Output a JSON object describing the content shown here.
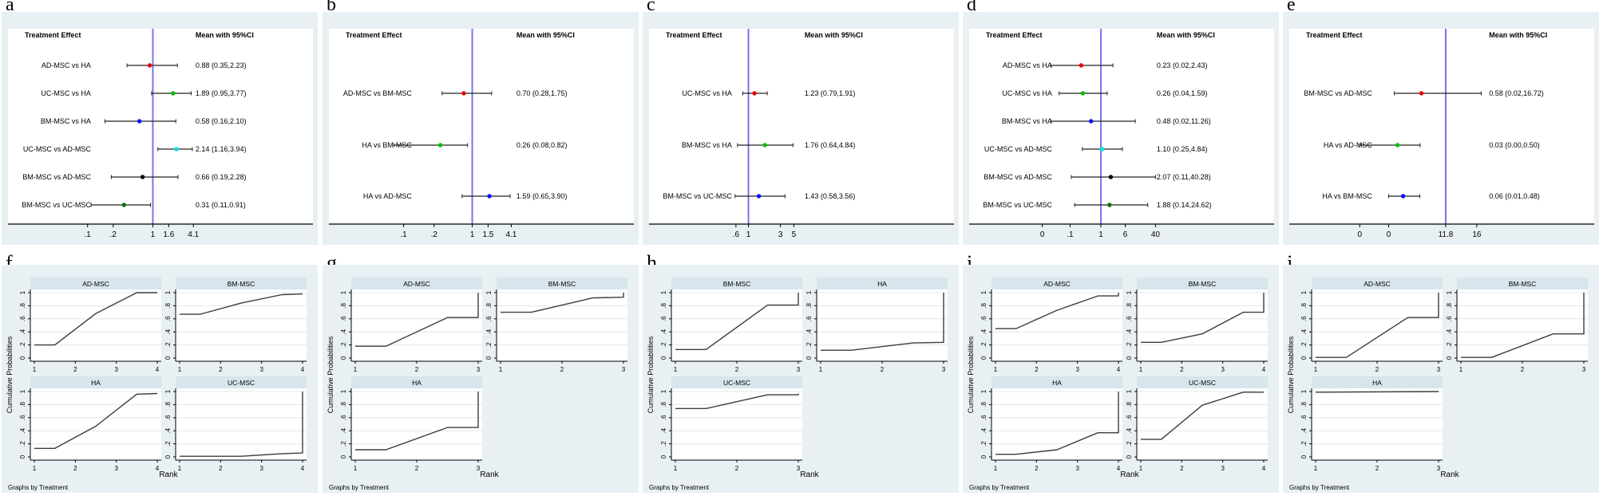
{
  "figure": {
    "panel_letters": [
      "a",
      "b",
      "c",
      "d",
      "e",
      "f",
      "g",
      "h",
      "i",
      "j"
    ]
  },
  "colors": {
    "panel_bg": "#e9f0f3",
    "header_band": "#d8e5ec",
    "gridline": "#dce8ef",
    "ref_line": "#7676ee",
    "curve": "#3c3c3c",
    "axis": "#000000",
    "dots": {
      "red": "#f00000",
      "green": "#00c000",
      "blue": "#0f0fff",
      "cyan": "#00dfe8",
      "black": "#000000",
      "dkgreen": "#0c6e0c"
    }
  },
  "chart_data": [
    {
      "id": "a",
      "type": "forest",
      "letter": "a",
      "headers": {
        "left": "Treatment Effect",
        "right": "Mean with 95%CI"
      },
      "rows": [
        {
          "label": "AD-MSC vs HA",
          "text": "0.88 (0.35,2.23)",
          "mean": 0.88,
          "lo": 0.35,
          "hi": 2.23,
          "color": "red"
        },
        {
          "label": "UC-MSC vs HA",
          "text": "1.89 (0.95,3.77)",
          "mean": 1.89,
          "lo": 0.95,
          "hi": 3.77,
          "color": "green"
        },
        {
          "label": "BM-MSC vs HA",
          "text": "0.58 (0.16,2.10)",
          "mean": 0.58,
          "lo": 0.16,
          "hi": 2.1,
          "color": "blue"
        },
        {
          "label": "UC-MSC vs AD-MSC",
          "text": "2.14 (1.16,3.94)",
          "mean": 2.14,
          "lo": 1.16,
          "hi": 3.94,
          "color": "cyan"
        },
        {
          "label": "BM-MSC vs AD-MSC",
          "text": "0.66 (0.19,2.28)",
          "mean": 0.66,
          "lo": 0.19,
          "hi": 2.28,
          "color": "black"
        },
        {
          "label": "BM-MSC vs UC-MSC",
          "text": "0.31 (0.11,0.91)",
          "mean": 0.31,
          "lo": 0.11,
          "hi": 0.91,
          "color": "dkgreen"
        }
      ],
      "ticks": [
        {
          "label": ".1",
          "av": 0.1,
          "f": 0.261
        },
        {
          "label": ".2",
          "av": 0.2,
          "f": 0.345
        },
        {
          "label": "1",
          "av": 1,
          "f": 0.475
        },
        {
          "label": "1.6",
          "av": 1.6,
          "f": 0.527
        },
        {
          "label": "4.1",
          "av": 4.1,
          "f": 0.608
        }
      ],
      "ref_f": 0.475,
      "value_col_f": 0.615
    },
    {
      "id": "b",
      "type": "forest",
      "letter": "b",
      "headers": {
        "left": "Treatment Effect",
        "right": "Mean with 95%CI"
      },
      "rows": [
        {
          "label": "AD-MSC vs BM-MSC",
          "text": "0.70 (0.28,1.75)",
          "mean": 0.7,
          "lo": 0.28,
          "hi": 1.75,
          "color": "red"
        },
        {
          "label": "HA vs BM-MSC",
          "text": "0.26 (0.08,0.82)",
          "mean": 0.26,
          "lo": 0.08,
          "hi": 0.82,
          "color": "green"
        },
        {
          "label": "HA vs AD-MSC",
          "text": "1.59 (0.65,3.90)",
          "mean": 1.59,
          "lo": 0.65,
          "hi": 3.9,
          "color": "blue"
        }
      ],
      "ticks": [
        {
          "label": ".1",
          "av": 0.1,
          "f": 0.245
        },
        {
          "label": ".2",
          "av": 0.2,
          "f": 0.345
        },
        {
          "label": "1",
          "av": 1,
          "f": 0.47
        },
        {
          "label": "1.5",
          "av": 1.5,
          "f": 0.522
        },
        {
          "label": "4.1",
          "av": 4.1,
          "f": 0.598
        }
      ],
      "ref_f": 0.47,
      "value_col_f": 0.615
    },
    {
      "id": "c",
      "type": "forest",
      "letter": "c",
      "headers": {
        "left": "Treatment Effect",
        "right": "Mean with 95%CI"
      },
      "rows": [
        {
          "label": "UC-MSC vs HA",
          "text": "1.23 (0.79,1.91)",
          "mean": 1.23,
          "lo": 0.79,
          "hi": 1.91,
          "color": "red"
        },
        {
          "label": "BM-MSC vs HA",
          "text": "1.76 (0.64,4.84)",
          "mean": 1.76,
          "lo": 0.64,
          "hi": 4.84,
          "color": "green"
        },
        {
          "label": "BM-MSC vs UC-MSC",
          "text": "1.43 (0.58,3.56)",
          "mean": 1.43,
          "lo": 0.58,
          "hi": 3.56,
          "color": "blue"
        }
      ],
      "ticks": [
        {
          "label": ".6",
          "av": 0.6,
          "f": 0.285
        },
        {
          "label": "1",
          "av": 1,
          "f": 0.326
        },
        {
          "label": "3",
          "av": 3,
          "f": 0.431
        },
        {
          "label": "5",
          "av": 5,
          "f": 0.475
        }
      ],
      "ref_f": 0.326,
      "value_col_f": 0.51
    },
    {
      "id": "d",
      "type": "forest",
      "letter": "d",
      "headers": {
        "left": "Treatment Effect",
        "right": "Mean with 95%CI"
      },
      "rows": [
        {
          "label": "AD-MSC vs HA",
          "text": "0.23 (0.02,2.43)",
          "mean": 0.23,
          "lo": 0.02,
          "hi": 2.43,
          "color": "red"
        },
        {
          "label": "UC-MSC vs HA",
          "text": "0.26 (0.04,1.59)",
          "mean": 0.26,
          "lo": 0.04,
          "hi": 1.59,
          "color": "green"
        },
        {
          "label": "BM-MSC vs HA",
          "text": "0.48 (0.02,11.26)",
          "mean": 0.48,
          "lo": 0.02,
          "hi": 11.26,
          "color": "blue"
        },
        {
          "label": "UC-MSC vs AD-MSC",
          "text": "1.10 (0.25,4.84)",
          "mean": 1.1,
          "lo": 0.25,
          "hi": 4.84,
          "color": "cyan"
        },
        {
          "label": "BM-MSC vs AD-MSC",
          "text": "2.07 (0.11,40.28)",
          "mean": 2.07,
          "lo": 0.11,
          "hi": 40.28,
          "color": "black"
        },
        {
          "label": "BM-MSC vs UC-MSC",
          "text": "1.88 (0.14,24.62)",
          "mean": 1.88,
          "lo": 0.14,
          "hi": 24.62,
          "color": "dkgreen"
        }
      ],
      "ticks": [
        {
          "label": "0",
          "av": 0.01,
          "f": 0.24
        },
        {
          "label": ".1",
          "av": 0.1,
          "f": 0.331
        },
        {
          "label": "1",
          "av": 1,
          "f": 0.432
        },
        {
          "label": "6",
          "av": 6,
          "f": 0.512
        },
        {
          "label": "40",
          "av": 40,
          "f": 0.611
        }
      ],
      "ref_f": 0.432,
      "value_col_f": 0.615
    },
    {
      "id": "e",
      "type": "forest",
      "letter": "e",
      "headers": {
        "left": "Treatment Effect",
        "right": "Mean with 95%CI"
      },
      "rows": [
        {
          "label": "BM-MSC vs AD-MSC",
          "text": "0.58 (0.02,16.72)",
          "mean": 0.58,
          "lo": 0.02,
          "hi": 16.72,
          "color": "red"
        },
        {
          "label": "HA vs AD-MSC",
          "text": "0.03 (0.00,0.50)",
          "mean": 0.03,
          "lo": 0.001,
          "hi": 0.5,
          "color": "green"
        },
        {
          "label": "HA vs BM-MSC",
          "text": "0.06 (0.01,0.48)",
          "mean": 0.06,
          "lo": 0.01,
          "hi": 0.48,
          "color": "blue"
        }
      ],
      "ticks": [
        {
          "label": "0",
          "av": 0.001,
          "f": 0.231
        },
        {
          "label": "0",
          "av": 0.01,
          "f": 0.326
        },
        {
          "label": "11.8",
          "av": 11.8,
          "f": 0.513
        },
        {
          "label": "16",
          "av": 16,
          "f": 0.615
        }
      ],
      "ref_f": 0.513,
      "value_col_f": 0.655
    },
    {
      "id": "f",
      "type": "rank",
      "letter": "f",
      "ylabel": "Cumulative Probabilities",
      "xlabel": "Rank",
      "note": "Graphs by Treatment",
      "xmax": 4,
      "xticks": [
        "1",
        "2",
        "3",
        "4"
      ],
      "yticks": [
        {
          "label": "0",
          "v": 0
        },
        {
          "label": ".2",
          "v": 0.2
        },
        {
          "label": ".4",
          "v": 0.4
        },
        {
          "label": ".6",
          "v": 0.6
        },
        {
          "label": ".8",
          "v": 0.8
        },
        {
          "label": "1",
          "v": 1
        }
      ],
      "subplots": [
        {
          "title": "AD-MSC",
          "points": [
            [
              1,
              0.2
            ],
            [
              1.5,
              0.2
            ],
            [
              2.5,
              0.68
            ],
            [
              3.5,
              1.0
            ],
            [
              4,
              1.0
            ]
          ]
        },
        {
          "title": "BM-MSC",
          "points": [
            [
              1,
              0.67
            ],
            [
              1.5,
              0.67
            ],
            [
              2.5,
              0.84
            ],
            [
              3.5,
              0.97
            ],
            [
              4,
              0.98
            ]
          ]
        },
        {
          "title": "HA",
          "points": [
            [
              1,
              0.13
            ],
            [
              1.5,
              0.13
            ],
            [
              2.5,
              0.47
            ],
            [
              3.5,
              0.96
            ],
            [
              4,
              0.97
            ]
          ]
        },
        {
          "title": "UC-MSC",
          "points": [
            [
              1,
              0.01
            ],
            [
              2.5,
              0.01
            ],
            [
              3.5,
              0.05
            ],
            [
              4,
              0.06
            ],
            [
              4,
              1.0
            ]
          ]
        }
      ]
    },
    {
      "id": "g",
      "type": "rank",
      "letter": "g",
      "ylabel": "Cumulative Probabilities",
      "xlabel": "Rank",
      "note": "Graphs by Treatment",
      "xmax": 3,
      "xticks": [
        "1",
        "2",
        "3"
      ],
      "yticks": [
        {
          "label": "0",
          "v": 0
        },
        {
          "label": ".2",
          "v": 0.2
        },
        {
          "label": ".4",
          "v": 0.4
        },
        {
          "label": ".6",
          "v": 0.6
        },
        {
          "label": ".8",
          "v": 0.8
        },
        {
          "label": "1",
          "v": 1
        }
      ],
      "subplots": [
        {
          "title": "AD-MSC",
          "points": [
            [
              1,
              0.18
            ],
            [
              1.5,
              0.18
            ],
            [
              2.5,
              0.62
            ],
            [
              3,
              0.62
            ],
            [
              3,
              1.0
            ]
          ]
        },
        {
          "title": "BM-MSC",
          "points": [
            [
              1,
              0.7
            ],
            [
              1.5,
              0.7
            ],
            [
              2.5,
              0.92
            ],
            [
              3,
              0.93
            ],
            [
              3,
              1.0
            ]
          ]
        },
        {
          "title": "HA",
          "points": [
            [
              1,
              0.11
            ],
            [
              1.5,
              0.11
            ],
            [
              2.5,
              0.45
            ],
            [
              3,
              0.45
            ],
            [
              3,
              1.0
            ]
          ]
        }
      ]
    },
    {
      "id": "h",
      "type": "rank",
      "letter": "h",
      "ylabel": "Cumulative Probabilities",
      "xlabel": "Rank",
      "note": "Graphs by Treatment",
      "xmax": 3,
      "xticks": [
        "1",
        "2",
        "3"
      ],
      "yticks": [
        {
          "label": "0",
          "v": 0
        },
        {
          "label": ".2",
          "v": 0.2
        },
        {
          "label": ".4",
          "v": 0.4
        },
        {
          "label": ".6",
          "v": 0.6
        },
        {
          "label": ".8",
          "v": 0.8
        },
        {
          "label": "1",
          "v": 1
        }
      ],
      "subplots": [
        {
          "title": "BM-MSC",
          "points": [
            [
              1,
              0.13
            ],
            [
              1.5,
              0.13
            ],
            [
              2.5,
              0.81
            ],
            [
              3,
              0.81
            ],
            [
              3,
              1.0
            ]
          ]
        },
        {
          "title": "HA",
          "points": [
            [
              1,
              0.12
            ],
            [
              1.5,
              0.12
            ],
            [
              2.5,
              0.23
            ],
            [
              3,
              0.24
            ],
            [
              3,
              1.0
            ]
          ]
        },
        {
          "title": "UC-MSC",
          "points": [
            [
              1,
              0.74
            ],
            [
              1.5,
              0.74
            ],
            [
              2.5,
              0.95
            ],
            [
              3,
              0.95
            ],
            [
              3,
              0.97
            ]
          ]
        }
      ]
    },
    {
      "id": "i",
      "type": "rank",
      "letter": "i",
      "ylabel": "Cumulative Probabilities",
      "xlabel": "Rank",
      "note": "Graphs by Treatment",
      "xmax": 4,
      "xticks": [
        "1",
        "2",
        "3",
        "4"
      ],
      "yticks": [
        {
          "label": "0",
          "v": 0
        },
        {
          "label": ".2",
          "v": 0.2
        },
        {
          "label": ".4",
          "v": 0.4
        },
        {
          "label": ".6",
          "v": 0.6
        },
        {
          "label": ".8",
          "v": 0.8
        },
        {
          "label": "1",
          "v": 1
        }
      ],
      "subplots": [
        {
          "title": "AD-MSC",
          "points": [
            [
              1,
              0.45
            ],
            [
              1.5,
              0.45
            ],
            [
              2.5,
              0.73
            ],
            [
              3.5,
              0.95
            ],
            [
              4,
              0.95
            ],
            [
              4,
              1.0
            ]
          ]
        },
        {
          "title": "BM-MSC",
          "points": [
            [
              1,
              0.24
            ],
            [
              1.5,
              0.24
            ],
            [
              2.5,
              0.37
            ],
            [
              3.5,
              0.7
            ],
            [
              4,
              0.7
            ],
            [
              4,
              1.0
            ]
          ]
        },
        {
          "title": "HA",
          "points": [
            [
              1,
              0.04
            ],
            [
              1.5,
              0.04
            ],
            [
              2.5,
              0.11
            ],
            [
              3.5,
              0.37
            ],
            [
              4,
              0.37
            ],
            [
              4,
              1.0
            ]
          ]
        },
        {
          "title": "UC-MSC",
          "points": [
            [
              1,
              0.27
            ],
            [
              1.5,
              0.27
            ],
            [
              2.5,
              0.79
            ],
            [
              3.5,
              0.99
            ],
            [
              4,
              0.99
            ]
          ]
        }
      ]
    },
    {
      "id": "j",
      "type": "rank",
      "letter": "j",
      "ylabel": "Cumulative Probabilities",
      "xlabel": "Rank",
      "note": "Graphs by Treatment",
      "xmax": 3,
      "xticks": [
        "1",
        "2",
        "3"
      ],
      "yticks": [
        {
          "label": "0",
          "v": 0
        },
        {
          "label": ".2",
          "v": 0.2
        },
        {
          "label": ".4",
          "v": 0.4
        },
        {
          "label": ".6",
          "v": 0.6
        },
        {
          "label": ".8",
          "v": 0.8
        },
        {
          "label": "1",
          "v": 1
        }
      ],
      "subplots": [
        {
          "title": "AD-MSC",
          "points": [
            [
              1,
              0.01
            ],
            [
              1.5,
              0.01
            ],
            [
              2.5,
              0.62
            ],
            [
              3,
              0.62
            ],
            [
              3,
              1.0
            ]
          ]
        },
        {
          "title": "BM-MSC",
          "points": [
            [
              1,
              0.01
            ],
            [
              1.5,
              0.01
            ],
            [
              2.5,
              0.37
            ],
            [
              3,
              0.37
            ],
            [
              3,
              1.0
            ]
          ]
        },
        {
          "title": "HA",
          "points": [
            [
              1,
              0.99
            ],
            [
              3,
              1.0
            ]
          ]
        }
      ]
    }
  ]
}
